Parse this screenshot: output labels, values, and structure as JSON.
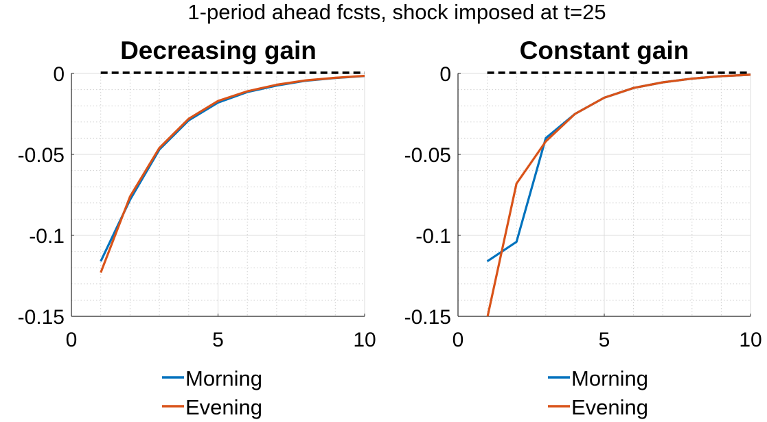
{
  "figure": {
    "suptitle": "1-period ahead fcsts, shock imposed at t=25"
  },
  "colors": {
    "morning": "#0072BD",
    "evening": "#D95319",
    "zero_line": "#000000",
    "grid": "#dcdcdc"
  },
  "chart_data": [
    {
      "type": "line",
      "title": "Decreasing gain",
      "xlabel": "",
      "ylabel": "",
      "xlim": [
        0,
        10
      ],
      "ylim": [
        -0.15,
        0
      ],
      "xticks": [
        0,
        5,
        10
      ],
      "xtick_labels": [
        "0",
        "5",
        "10"
      ],
      "yticks": [
        0,
        -0.05,
        -0.1,
        -0.15
      ],
      "ytick_labels": [
        "0",
        "-0.05",
        "-0.1",
        "-0.15"
      ],
      "grid": true,
      "minor_grid": true,
      "legend": "below",
      "zero_line": {
        "y": 0,
        "style": "dashed"
      },
      "x": [
        1,
        2,
        3,
        4,
        5,
        6,
        7,
        8,
        9,
        10
      ],
      "series": [
        {
          "name": "Morning",
          "color_key": "morning",
          "values": [
            -0.116,
            -0.078,
            -0.047,
            -0.029,
            -0.018,
            -0.0115,
            -0.0075,
            -0.0045,
            -0.0028,
            -0.0016
          ]
        },
        {
          "name": "Evening",
          "color_key": "evening",
          "values": [
            -0.123,
            -0.076,
            -0.046,
            -0.028,
            -0.017,
            -0.011,
            -0.007,
            -0.0043,
            -0.0027,
            -0.0015
          ]
        }
      ]
    },
    {
      "type": "line",
      "title": "Constant gain",
      "xlabel": "",
      "ylabel": "",
      "xlim": [
        0,
        10
      ],
      "ylim": [
        -0.15,
        0
      ],
      "xticks": [
        0,
        5,
        10
      ],
      "xtick_labels": [
        "0",
        "5",
        "10"
      ],
      "yticks": [
        0,
        -0.05,
        -0.1,
        -0.15
      ],
      "ytick_labels": [
        "0",
        "-0.05",
        "-0.1",
        "-0.15"
      ],
      "grid": true,
      "minor_grid": true,
      "legend": "below",
      "zero_line": {
        "y": 0,
        "style": "dashed"
      },
      "x": [
        1,
        2,
        3,
        4,
        5,
        6,
        7,
        8,
        9,
        10
      ],
      "series": [
        {
          "name": "Morning",
          "color_key": "morning",
          "values": [
            -0.116,
            -0.104,
            -0.04,
            -0.025,
            -0.015,
            -0.009,
            -0.0055,
            -0.0032,
            -0.0017,
            -0.0008
          ]
        },
        {
          "name": "Evening",
          "color_key": "evening",
          "values": [
            -0.151,
            -0.068,
            -0.042,
            -0.025,
            -0.015,
            -0.009,
            -0.0055,
            -0.0032,
            -0.0017,
            -0.0008
          ]
        }
      ]
    }
  ]
}
